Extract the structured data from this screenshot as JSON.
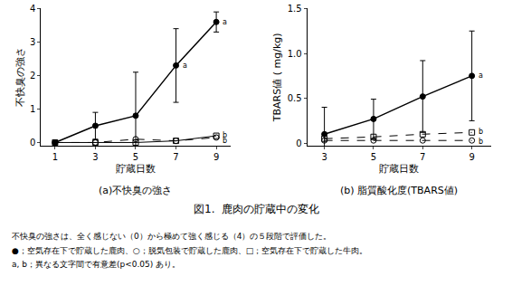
{
  "chart_data": [
    {
      "type": "line",
      "title": "(a)不快臭の強さ",
      "x_label": "貯蔵日数",
      "y_label": "不快臭の強さ",
      "x": [
        1,
        3,
        5,
        7,
        9
      ],
      "series": [
        {
          "color": "#000000",
          "marker": "filled_circle",
          "line_style": "solid",
          "values": [
            0,
            0.5,
            0.8,
            2.3,
            3.6
          ],
          "errors": [
            0,
            0.4,
            1.3,
            1.1,
            0.3
          ]
        },
        {
          "color": "#000000",
          "marker": "open_circle",
          "line_style": "dashed",
          "values": [
            0,
            0,
            0.1,
            0.05,
            0.15
          ]
        },
        {
          "color": "#000000",
          "marker": "open_square",
          "line_style": "solid",
          "values": [
            0,
            0,
            0,
            0.05,
            0.2
          ]
        }
      ],
      "annotations": [
        {
          "x": 7,
          "y": 2.3,
          "text": "a"
        },
        {
          "x": 9,
          "y": 3.6,
          "text": "a"
        },
        {
          "x": 9,
          "y": 0.22,
          "text": "b"
        },
        {
          "x": 9,
          "y": 0.04,
          "text": "b"
        }
      ],
      "xlim": [
        0.3,
        9.7
      ],
      "xticks": [
        1,
        3,
        5,
        7,
        9
      ],
      "ylim": [
        -0.1,
        4
      ],
      "yticks": [
        0,
        1,
        2,
        3,
        4
      ],
      "grid": false
    },
    {
      "type": "line",
      "title": "(b) 脂質酸化度(TBARS値)",
      "x_label": "貯蔵日数",
      "y_label": "TBARS値 ( mg/kg)",
      "x": [
        3,
        5,
        7,
        9
      ],
      "series": [
        {
          "color": "#000000",
          "marker": "filled_circle",
          "line_style": "solid",
          "values": [
            0.1,
            0.27,
            0.52,
            0.75
          ],
          "errors": [
            0.3,
            0.22,
            0.4,
            0.5
          ]
        },
        {
          "color": "#000000",
          "marker": "open_circle",
          "line_style": "dashed",
          "values": [
            0.03,
            0.03,
            0.03,
            0.03
          ]
        },
        {
          "color": "#000000",
          "marker": "open_square",
          "line_style": "dashed",
          "values": [
            0.05,
            0.07,
            0.1,
            0.12
          ]
        }
      ],
      "annotations": [
        {
          "x": 9,
          "y": 0.75,
          "text": "a"
        },
        {
          "x": 9,
          "y": 0.13,
          "text": "b"
        },
        {
          "x": 9,
          "y": 0.02,
          "text": "b"
        }
      ],
      "xlim": [
        2.3,
        9.8
      ],
      "xticks": [
        3,
        5,
        7,
        9
      ],
      "ylim": [
        -0.03,
        1.5
      ],
      "yticks": [
        0,
        0.5,
        {
          "value": 1,
          "label": "1.0"
        },
        1.5
      ],
      "grid": false
    }
  ],
  "figure": {
    "caption": "図1.  鹿肉の貯蔵中の変化",
    "notes": [
      "不快臭の強さは、全く感じない（0）から極めて強く感じる（4）の５段階で評価した。",
      "●；空気存在下で貯蔵した鹿肉、○；脱気包装で貯蔵した鹿肉、□；空気存在下で貯蔵した牛肉。",
      "a, b；異なる文字間で有意差(p<0.05) あり。"
    ]
  }
}
